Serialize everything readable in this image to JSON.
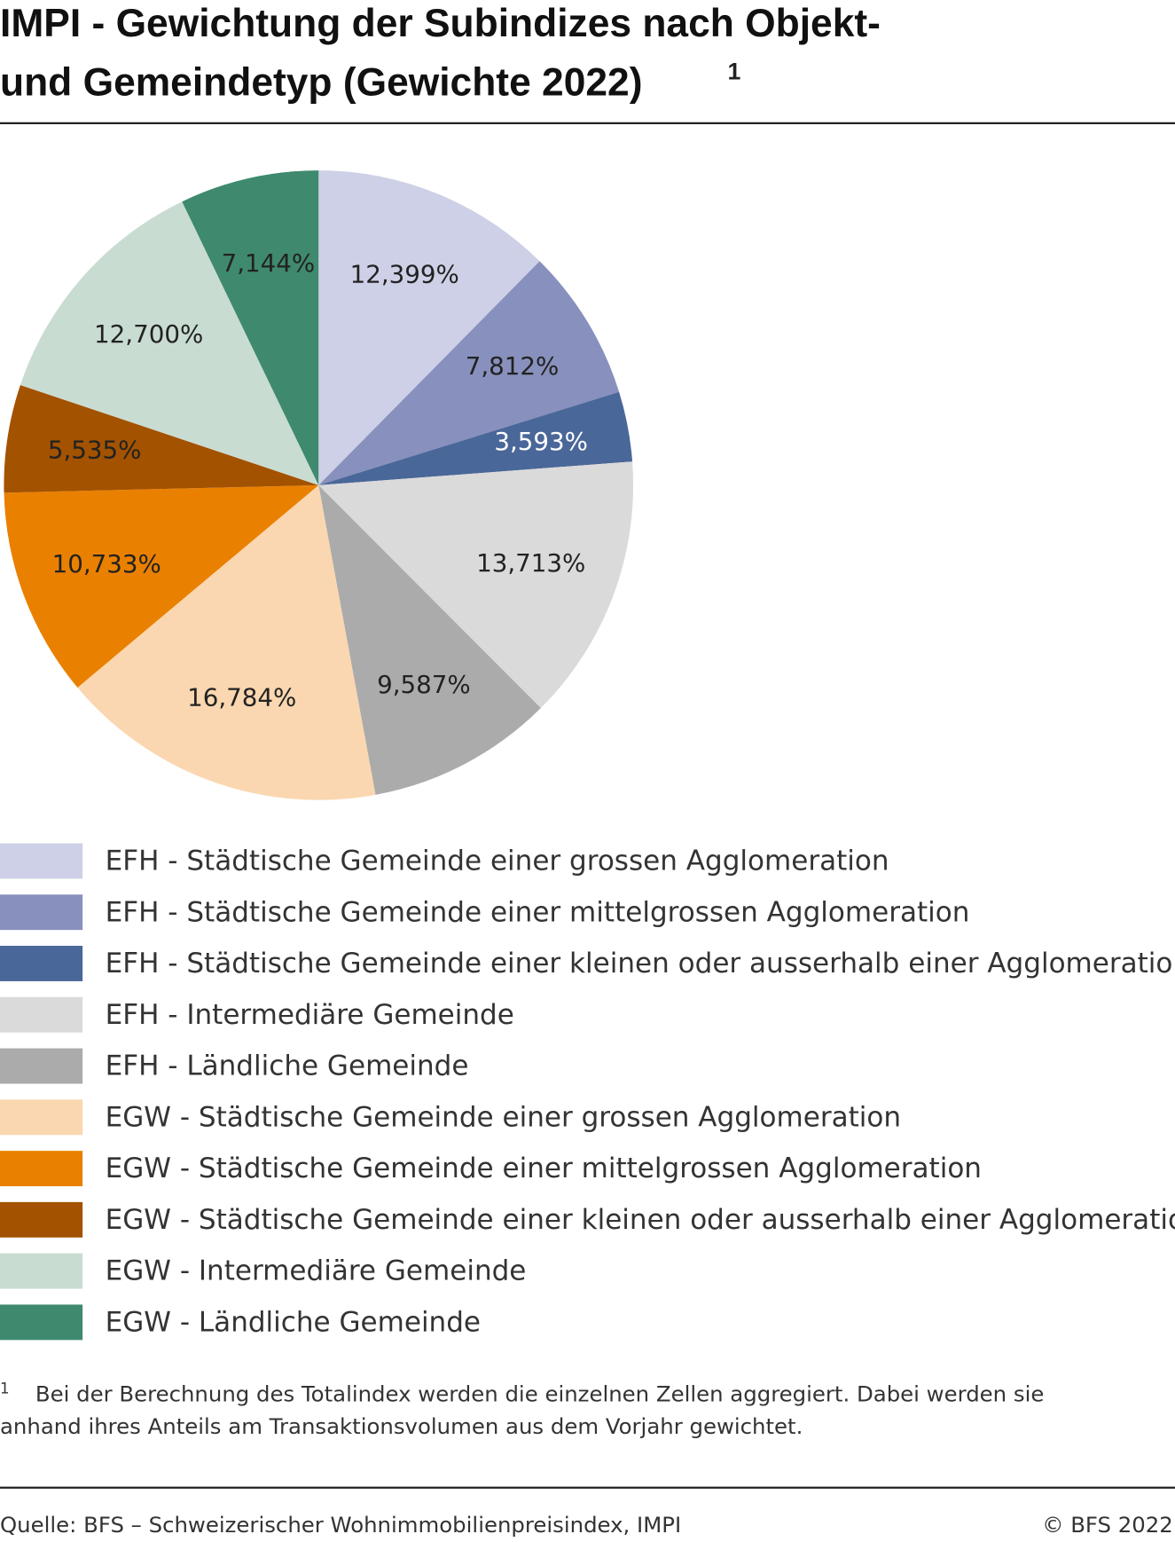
{
  "chart_data": {
    "type": "pie",
    "title": [
      "IMPI - Gewichtung der Subindizes nach Objekt-",
      "und Gemeindetyp (Gewichte 2022)"
    ],
    "title_note": "1",
    "categories": [
      "EFH - Städtische Gemeinde einer grossen Agglomeration",
      "EFH - Städtische Gemeinde einer mittelgrossen Agglomeration",
      "EFH - Städtische Gemeinde einer kleinen oder ausserhalb einer Agglomeration",
      "EFH - Intermediäre Gemeinde",
      "EFH - Ländliche Gemeinde",
      "EGW - Städtische Gemeinde einer grossen Agglomeration",
      "EGW - Städtische Gemeinde einer mittelgrossen Agglomeration",
      "EGW - Städtische Gemeinde einer kleinen oder ausserhalb einer Agglomeration",
      "EGW - Intermediäre Gemeinde",
      "EGW - Ländliche Gemeinde"
    ],
    "values": [
      12.399,
      7.812,
      3.593,
      13.713,
      9.587,
      16.784,
      10.733,
      5.535,
      12.7,
      7.144
    ],
    "value_labels": [
      "12,399%",
      "7,812%",
      "3,593%",
      "13,713%",
      "9,587%",
      "16,784%",
      "10,733%",
      "5,535%",
      "12,700%",
      "7,144%"
    ],
    "colors": [
      "#cdd0e6",
      "#8890bd",
      "#4a6799",
      "#dadada",
      "#ababab",
      "#fad7b0",
      "#ea8000",
      "#a35200",
      "#c9dcd2",
      "#3f8a6e"
    ],
    "footnote": {
      "marker": "1",
      "lines": [
        "Bei der Berechnung des Totalindex werden die einzelnen Zellen aggregiert. Dabei werden sie",
        "anhand ihres Anteils am Transaktionsvolumen aus dem Vorjahr gewichtet."
      ]
    },
    "source": "Quelle: BFS – Schweizerischer Wohnimmobilienpreisindex, IMPI",
    "copyright": "© BFS 2022"
  }
}
